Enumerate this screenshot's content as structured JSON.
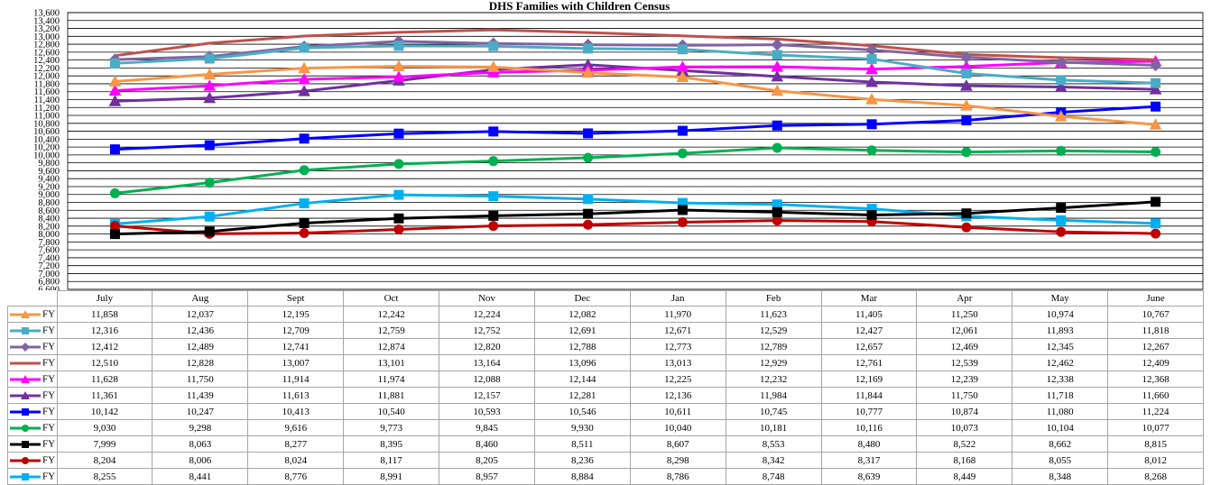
{
  "chart_data": {
    "type": "line",
    "title": "DHS Families with Children Census",
    "categories": [
      "July",
      "Aug",
      "Sept",
      "Oct",
      "Nov",
      "Dec",
      "Jan",
      "Feb",
      "Mar",
      "Apr",
      "May",
      "June"
    ],
    "ylim": [
      6600,
      13600
    ],
    "ytick_step": 200,
    "grid": true,
    "legend": "data-table",
    "series": [
      {
        "name": "FY 20",
        "color": "#f79646",
        "marker": "triangle",
        "values": [
          11858,
          12037,
          12195,
          12242,
          12224,
          12082,
          11970,
          11623,
          11405,
          11250,
          10974,
          10767
        ]
      },
      {
        "name": "FY 19",
        "color": "#4bacc6",
        "marker": "square",
        "values": [
          12316,
          12436,
          12709,
          12759,
          12752,
          12691,
          12671,
          12529,
          12427,
          12061,
          11893,
          11818
        ]
      },
      {
        "name": "FY 18",
        "color": "#8064a2",
        "marker": "diamond",
        "values": [
          12412,
          12489,
          12741,
          12874,
          12820,
          12788,
          12773,
          12789,
          12657,
          12469,
          12345,
          12267
        ]
      },
      {
        "name": "FY 17",
        "color": "#c0504d",
        "marker": "none",
        "values": [
          12510,
          12828,
          13007,
          13101,
          13164,
          13096,
          13013,
          12929,
          12761,
          12539,
          12462,
          12409
        ]
      },
      {
        "name": "FY 16",
        "color": "#ff00ff",
        "marker": "triangle",
        "values": [
          11628,
          11750,
          11914,
          11974,
          12088,
          12144,
          12225,
          12232,
          12169,
          12239,
          12338,
          12368
        ]
      },
      {
        "name": "FY 15",
        "color": "#7030a0",
        "marker": "triangle",
        "values": [
          11361,
          11439,
          11613,
          11881,
          12157,
          12281,
          12136,
          11984,
          11844,
          11750,
          11718,
          11660
        ]
      },
      {
        "name": "FY 14",
        "color": "#0000ff",
        "marker": "square",
        "values": [
          10142,
          10247,
          10413,
          10540,
          10593,
          10546,
          10611,
          10745,
          10777,
          10874,
          11080,
          11224
        ]
      },
      {
        "name": "FY 13",
        "color": "#00b050",
        "marker": "circle",
        "values": [
          9030,
          9298,
          9616,
          9773,
          9845,
          9930,
          10040,
          10181,
          10116,
          10073,
          10104,
          10077
        ]
      },
      {
        "name": "FY 12",
        "color": "#000000",
        "marker": "square",
        "values": [
          7999,
          8063,
          8277,
          8395,
          8460,
          8511,
          8607,
          8553,
          8480,
          8522,
          8662,
          8815
        ]
      },
      {
        "name": "FY 11",
        "color": "#c00000",
        "marker": "circle",
        "values": [
          8204,
          8006,
          8024,
          8117,
          8205,
          8236,
          8298,
          8342,
          8317,
          8168,
          8055,
          8012
        ]
      },
      {
        "name": "FY 10",
        "color": "#00b0f0",
        "marker": "square",
        "values": [
          8255,
          8441,
          8776,
          8991,
          8957,
          8884,
          8786,
          8748,
          8639,
          8449,
          8348,
          8268
        ]
      }
    ],
    "table": {
      "header": [
        "July",
        "Aug",
        "Sept",
        "Oct",
        "Nov",
        "Dec",
        "Jan",
        "Feb",
        "Mar",
        "Apr",
        "May",
        "June"
      ],
      "rows": [
        {
          "label": "FY 20",
          "cells": [
            "11,858",
            "12,037",
            "12,195",
            "12,242",
            "12,224",
            "12,082",
            "11,970",
            "11,623",
            "11,405",
            "11,250",
            "10,974",
            "10,767"
          ]
        },
        {
          "label": "FY 19",
          "cells": [
            "12,316",
            "12,436",
            "12,709",
            "12,759",
            "12,752",
            "12,691",
            "12,671",
            "12,529",
            "12,427",
            "12,061",
            "11,893",
            "11,818"
          ]
        },
        {
          "label": "FY 18",
          "cells": [
            "12,412",
            "12,489",
            "12,741",
            "12,874",
            "12,820",
            "12,788",
            "12,773",
            "12,789",
            "12,657",
            "12,469",
            "12,345",
            "12,267"
          ]
        },
        {
          "label": "FY 17",
          "cells": [
            "12,510",
            "12,828",
            "13,007",
            "13,101",
            "13,164",
            "13,096",
            "13,013",
            "12,929",
            "12,761",
            "12,539",
            "12,462",
            "12,409"
          ]
        },
        {
          "label": "FY 16",
          "cells": [
            "11,628",
            "11,750",
            "11,914",
            "11,974",
            "12,088",
            "12,144",
            "12,225",
            "12,232",
            "12,169",
            "12,239",
            "12,338",
            "12,368"
          ]
        },
        {
          "label": "FY 15",
          "cells": [
            "11,361",
            "11,439",
            "11,613",
            "11,881",
            "12,157",
            "12,281",
            "12,136",
            "11,984",
            "11,844",
            "11,750",
            "11,718",
            "11,660"
          ]
        },
        {
          "label": "FY 14",
          "cells": [
            "10,142",
            "10,247",
            "10,413",
            "10,540",
            "10,593",
            "10,546",
            "10,611",
            "10,745",
            "10,777",
            "10,874",
            "11,080",
            "11,224"
          ]
        },
        {
          "label": "FY 13",
          "cells": [
            "9,030",
            "9,298",
            "9,616",
            "9,773",
            "9,845",
            "9,930",
            "10,040",
            "10,181",
            "10,116",
            "10,073",
            "10,104",
            "10,077"
          ]
        },
        {
          "label": "FY 12",
          "cells": [
            "7,999",
            "8,063",
            "8,277",
            "8,395",
            "8,460",
            "8,511",
            "8,607",
            "8,553",
            "8,480",
            "8,522",
            "8,662",
            "8,815"
          ]
        },
        {
          "label": "FY 11",
          "cells": [
            "8,204",
            "8,006",
            "8,024",
            "8,117",
            "8,205",
            "8,236",
            "8,298",
            "8,342",
            "8,317",
            "8,168",
            "8,055",
            "8,012"
          ]
        },
        {
          "label": "FY 10",
          "cells": [
            "8,255",
            "8,441",
            "8,776",
            "8,991",
            "8,957",
            "8,884",
            "8,786",
            "8,748",
            "8,639",
            "8,449",
            "8,348",
            "8,268"
          ]
        }
      ]
    }
  }
}
